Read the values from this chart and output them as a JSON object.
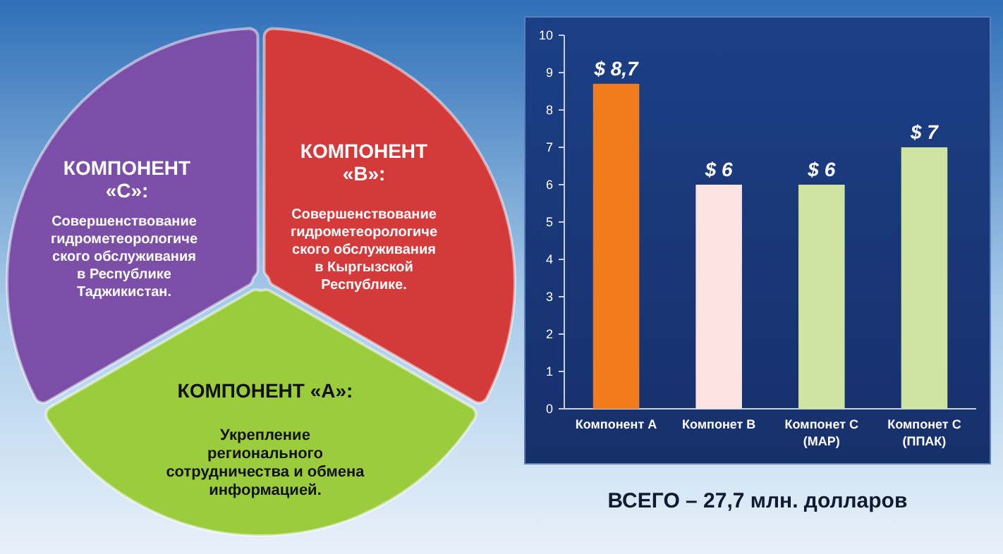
{
  "chart_data": [
    {
      "type": "other",
      "annotations": [
        "КОМПОНЕНТ\n«С»:",
        "Совершенствование\nгидрометеорологиче\nского обслуживания\nв Республике\nТаджикистан.",
        "КОМПОНЕНТ\n«В»:",
        "Совершенствование\nгидрометеорологиче\nского обслуживания\nв Кыргызской\nРеспублике.",
        "КОМПОНЕНТ «А»:",
        "Укрепление\nрегионального\nсотрудничества и обмена\nинформацией."
      ]
    },
    {
      "type": "bar",
      "categories": [
        "Компонент А",
        "Компонет В",
        "Компонет С\n(МАР)",
        "Компонет С\n(ППАК)"
      ],
      "values": [
        8.7,
        6,
        6,
        7
      ],
      "colors": [
        "#f07c1c",
        "#fde2e2",
        "#cfe4a0",
        "#cfe4a0"
      ],
      "value_labels": [
        "$ 8,7",
        "$ 6",
        "$ 6",
        "$ 7"
      ],
      "ylim": [
        0,
        10
      ],
      "yticks": [
        0,
        1,
        2,
        3,
        4,
        5,
        6,
        7,
        8,
        9,
        10
      ],
      "annotations": [
        "ВСЕГО – 27,7 млн. долларов"
      ]
    }
  ]
}
